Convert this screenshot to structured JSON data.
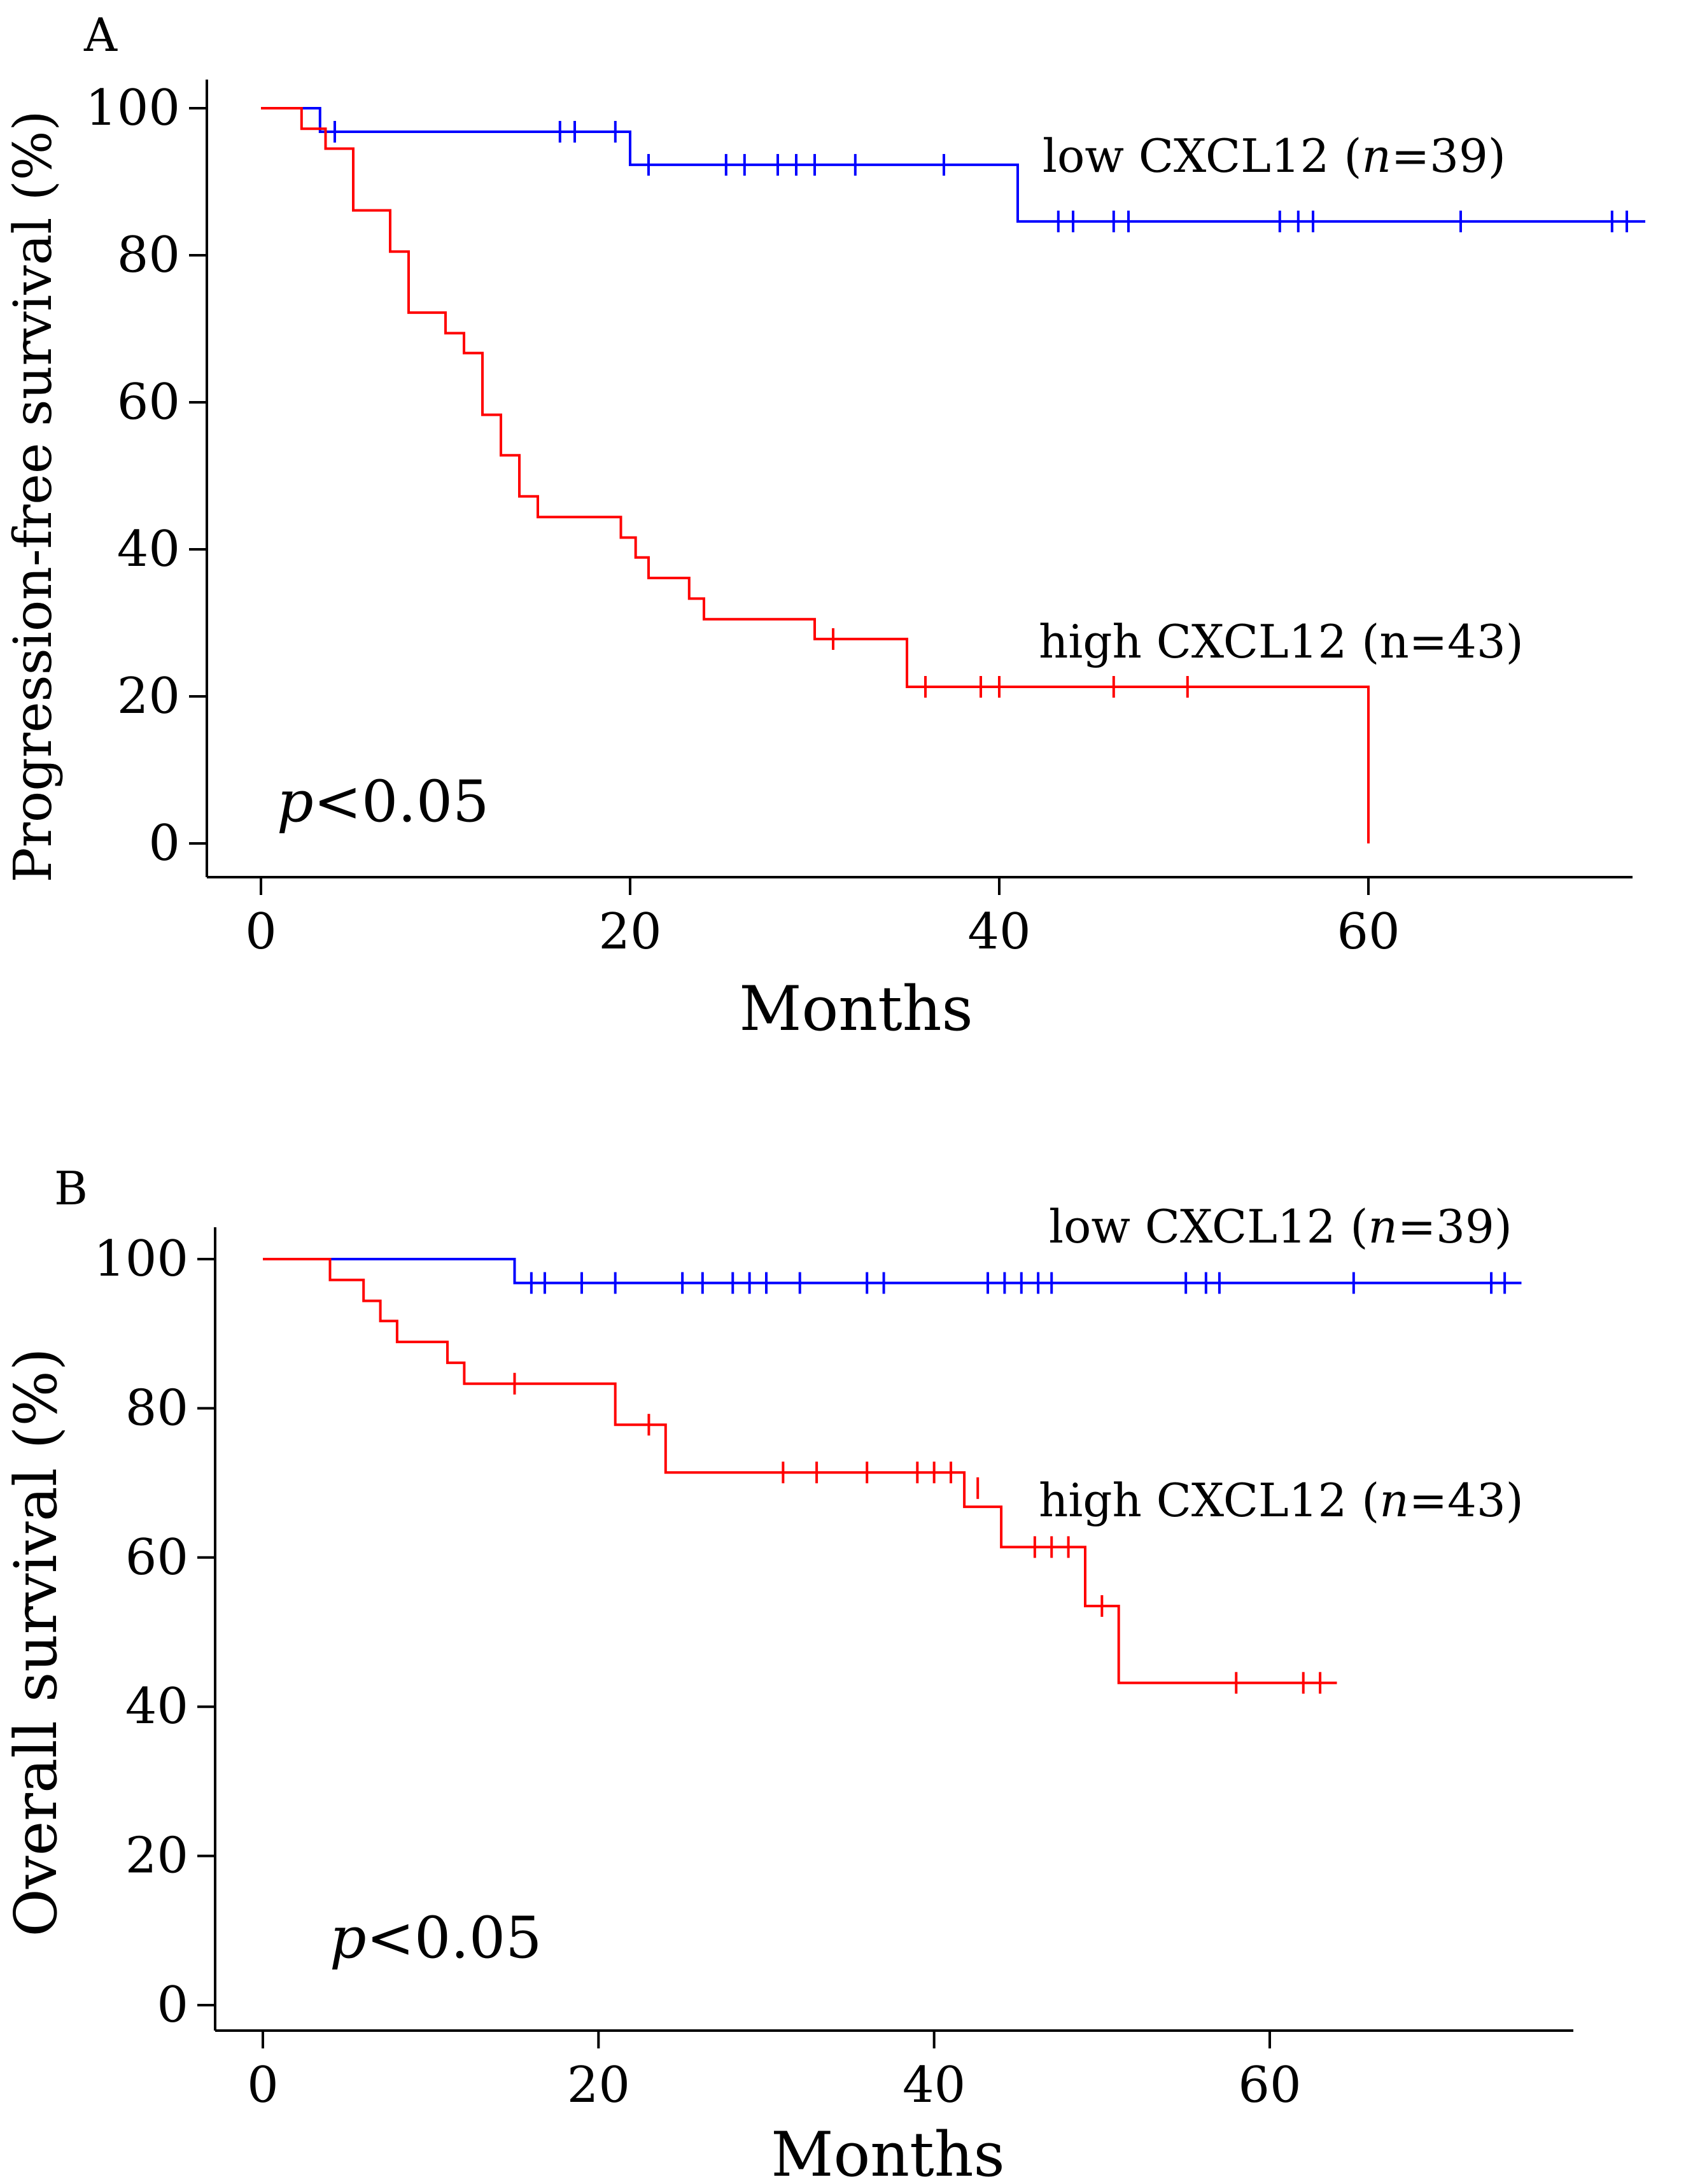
{
  "chart_data": [
    {
      "type": "line",
      "panel": "A",
      "xlabel": "Months",
      "ylabel": "Progression-free survival (%)",
      "xlim": [
        -3,
        76
      ],
      "ylim": [
        -4,
        104
      ],
      "xticks": [
        0,
        20,
        40,
        60
      ],
      "yticks": [
        0,
        20,
        40,
        60,
        80,
        100
      ],
      "p_prefix": "p",
      "p_rest": "<0.05",
      "series": [
        {
          "name": "low CXCL12",
          "label_pre": "low CXCL12 (",
          "label_n": "n",
          "label_post": "=39)",
          "color": "#0000ff",
          "steps": [
            [
              0,
              100
            ],
            [
              3.2,
              100
            ],
            [
              3.2,
              96.8
            ],
            [
              20,
              96.8
            ],
            [
              20,
              92.3
            ],
            [
              41,
              92.3
            ],
            [
              41,
              84.6
            ],
            [
              75,
              84.6
            ]
          ],
          "censors": [
            [
              4,
              96.8
            ],
            [
              16.2,
              96.8
            ],
            [
              17,
              96.8
            ],
            [
              19.2,
              96.8
            ],
            [
              21,
              92.3
            ],
            [
              25.2,
              92.3
            ],
            [
              26.2,
              92.3
            ],
            [
              28,
              92.3
            ],
            [
              29,
              92.3
            ],
            [
              30,
              92.3
            ],
            [
              32.2,
              92.3
            ],
            [
              37,
              92.3
            ],
            [
              43.2,
              84.6
            ],
            [
              44,
              84.6
            ],
            [
              46.2,
              84.6
            ],
            [
              47,
              84.6
            ],
            [
              55.2,
              84.6
            ],
            [
              56.2,
              84.6
            ],
            [
              57,
              84.6
            ],
            [
              65,
              84.6
            ],
            [
              73.2,
              84.6
            ],
            [
              74,
              84.6
            ]
          ]
        },
        {
          "name": "high CXCL12",
          "label_pre": "high CXCL12 (n=43)",
          "label_n": "",
          "label_post": "",
          "color": "#ff0000",
          "steps": [
            [
              0,
              100
            ],
            [
              2.2,
              100
            ],
            [
              2.2,
              97.2
            ],
            [
              3.5,
              97.2
            ],
            [
              3.5,
              94.5
            ],
            [
              5,
              94.5
            ],
            [
              5,
              86.1
            ],
            [
              7,
              86.1
            ],
            [
              7,
              80.5
            ],
            [
              8,
              80.5
            ],
            [
              8,
              72.2
            ],
            [
              10,
              72.2
            ],
            [
              10,
              69.4
            ],
            [
              11,
              69.4
            ],
            [
              11,
              66.7
            ],
            [
              12,
              66.7
            ],
            [
              12,
              58.3
            ],
            [
              13,
              58.3
            ],
            [
              13,
              52.8
            ],
            [
              14,
              52.8
            ],
            [
              14,
              47.2
            ],
            [
              15,
              47.2
            ],
            [
              15,
              44.4
            ],
            [
              19.5,
              44.4
            ],
            [
              19.5,
              41.6
            ],
            [
              20.3,
              41.6
            ],
            [
              20.3,
              38.9
            ],
            [
              21,
              38.9
            ],
            [
              21,
              36.1
            ],
            [
              23.2,
              36.1
            ],
            [
              23.2,
              33.3
            ],
            [
              24,
              33.3
            ],
            [
              24,
              30.5
            ],
            [
              30,
              30.5
            ],
            [
              30,
              27.8
            ],
            [
              35,
              27.8
            ],
            [
              35,
              21.3
            ],
            [
              60,
              21.3
            ],
            [
              60,
              0
            ]
          ],
          "censors": [
            [
              31,
              27.8
            ],
            [
              36,
              21.3
            ],
            [
              39,
              21.3
            ],
            [
              40,
              21.3
            ],
            [
              46.2,
              21.3
            ],
            [
              50.2,
              21.3
            ]
          ]
        }
      ]
    },
    {
      "type": "line",
      "panel": "B",
      "xlabel": "Months",
      "ylabel": "Overall survival (%)",
      "xlim": [
        -2.5,
        76
      ],
      "ylim": [
        -2,
        103
      ],
      "xticks": [
        0,
        20,
        40,
        60
      ],
      "yticks": [
        0,
        20,
        40,
        60,
        80,
        100
      ],
      "p_prefix": "p",
      "p_rest": "<0.05",
      "series": [
        {
          "name": "low CXCL12",
          "label_pre": "low CXCL12 (",
          "label_n": "n",
          "label_post": "=39)",
          "color": "#0000ff",
          "steps": [
            [
              0,
              100
            ],
            [
              15,
              100
            ],
            [
              15,
              96.8
            ],
            [
              75,
              96.8
            ]
          ],
          "censors": [
            [
              16,
              96.8
            ],
            [
              16.8,
              96.8
            ],
            [
              19,
              96.8
            ],
            [
              21,
              96.8
            ],
            [
              25,
              96.8
            ],
            [
              26.2,
              96.8
            ],
            [
              28,
              96.8
            ],
            [
              29,
              96.8
            ],
            [
              30,
              96.8
            ],
            [
              32,
              96.8
            ],
            [
              36,
              96.8
            ],
            [
              37,
              96.8
            ],
            [
              43.2,
              96.8
            ],
            [
              44.2,
              96.8
            ],
            [
              45.2,
              96.8
            ],
            [
              46.2,
              96.8
            ],
            [
              47,
              96.8
            ],
            [
              55,
              96.8
            ],
            [
              56.2,
              96.8
            ],
            [
              57,
              96.8
            ],
            [
              65,
              96.8
            ],
            [
              73.2,
              96.8
            ],
            [
              74,
              96.8
            ]
          ]
        },
        {
          "name": "high CXCL12",
          "label_pre": "high CXCL12 (",
          "label_n": "n",
          "label_post": "=43)",
          "color": "#ff0000",
          "steps": [
            [
              0,
              100
            ],
            [
              4,
              100
            ],
            [
              4,
              97.2
            ],
            [
              6,
              97.2
            ],
            [
              6,
              94.4
            ],
            [
              7,
              94.4
            ],
            [
              7,
              91.7
            ],
            [
              8,
              91.7
            ],
            [
              8,
              88.9
            ],
            [
              11,
              88.9
            ],
            [
              11,
              86.1
            ],
            [
              12,
              86.1
            ],
            [
              12,
              83.3
            ],
            [
              21,
              83.3
            ],
            [
              21,
              77.8
            ],
            [
              24,
              77.8
            ],
            [
              24,
              71.4
            ],
            [
              41.8,
              71.4
            ],
            [
              41.8,
              66.8
            ],
            [
              44,
              66.8
            ],
            [
              44,
              61.4
            ],
            [
              49,
              61.4
            ],
            [
              49,
              53.5
            ],
            [
              51,
              53.5
            ],
            [
              51,
              43.2
            ],
            [
              64,
              43.2
            ]
          ],
          "censors": [
            [
              15,
              83.3
            ],
            [
              23,
              77.8
            ],
            [
              31,
              71.4
            ],
            [
              33,
              71.4
            ],
            [
              36,
              71.4
            ],
            [
              39,
              71.4
            ],
            [
              40,
              71.4
            ],
            [
              41,
              71.4
            ],
            [
              42.6,
              69.3
            ],
            [
              46,
              61.4
            ],
            [
              47,
              61.4
            ],
            [
              48,
              61.4
            ],
            [
              50,
              53.5
            ],
            [
              58,
              43.2
            ],
            [
              62,
              43.2
            ],
            [
              63,
              43.2
            ]
          ]
        }
      ]
    }
  ]
}
